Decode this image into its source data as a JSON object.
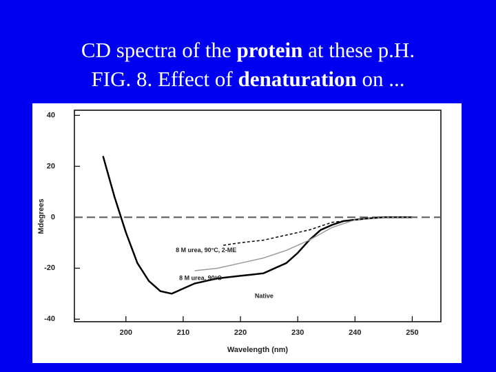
{
  "slide": {
    "title_lines": [
      [
        {
          "text": "CD spectra of the ",
          "bold": false
        },
        {
          "text": "protein",
          "bold": true
        },
        {
          "text": " at these p.H.",
          "bold": false
        }
      ],
      [
        {
          "text": "FIG. 8. Effect of ",
          "bold": false
        },
        {
          "text": "denaturation",
          "bold": true
        },
        {
          "text": " on ...",
          "bold": false
        }
      ]
    ]
  },
  "chart_data": {
    "type": "line",
    "xlabel": "Wavelength (nm)",
    "ylabel": "Mdegrees",
    "xlim": [
      191,
      255
    ],
    "ylim": [
      -41,
      42
    ],
    "xticks": [
      200,
      210,
      220,
      230,
      240,
      250
    ],
    "yticks": [
      40,
      20,
      0,
      -20,
      -40
    ],
    "reference_line": 0,
    "series": [
      {
        "name": "Native",
        "color": "#000000",
        "style": "solid",
        "x": [
          196,
          198,
          200,
          202,
          204,
          206,
          208,
          210,
          212,
          214,
          216,
          218,
          220,
          222,
          224,
          226,
          228,
          230,
          232,
          234,
          236,
          238,
          240,
          242,
          245,
          250
        ],
        "values": [
          24,
          8,
          -6,
          -18,
          -25,
          -29,
          -30,
          -28,
          -26,
          -25,
          -24,
          -23.5,
          -23,
          -22.5,
          -22,
          -20,
          -18,
          -14,
          -9,
          -5,
          -3,
          -1.5,
          -1,
          -0.5,
          0,
          0
        ]
      },
      {
        "name": "8 M urea, 90°C",
        "color": "#999999",
        "style": "solid",
        "x": [
          212,
          216,
          220,
          224,
          228,
          232,
          236,
          240,
          245,
          250
        ],
        "values": [
          -21,
          -20,
          -18,
          -16,
          -13,
          -9,
          -4,
          -1,
          0,
          0
        ]
      },
      {
        "name": "8 M urea, 90°C, 2-ME",
        "color": "#000000",
        "style": "dashed",
        "x": [
          217,
          220,
          224,
          228,
          232,
          236,
          240,
          245,
          250
        ],
        "values": [
          -11,
          -10,
          -9,
          -7,
          -5,
          -2,
          -1,
          0,
          0
        ]
      }
    ]
  }
}
